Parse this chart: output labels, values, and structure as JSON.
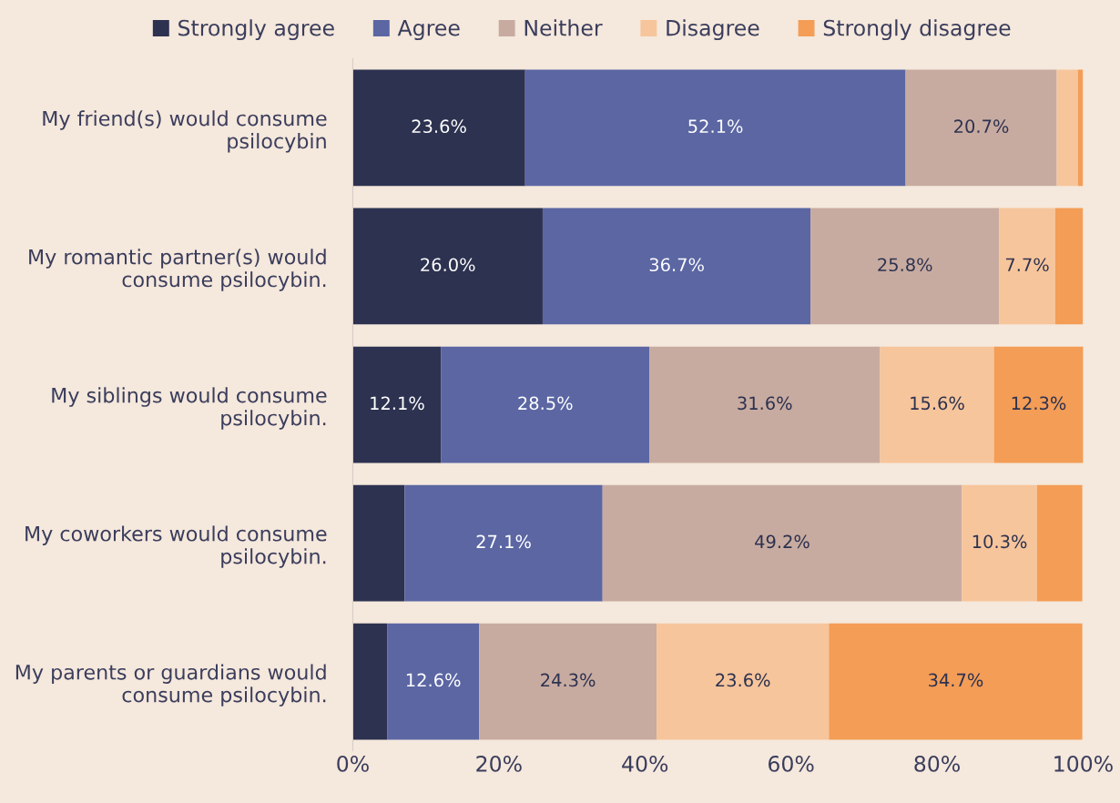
{
  "chart_data": {
    "type": "bar",
    "orientation": "horizontal",
    "stacked": true,
    "categories": [
      "My friend(s) would consume psilocybin",
      "My romantic partner(s) would consume psilocybin.",
      "My siblings would consume psilocybin.",
      "My coworkers would consume psilocybin.",
      "My parents or guardians would consume psilocybin."
    ],
    "series": [
      {
        "name": "Strongly agree",
        "color": "#2d3250",
        "values": [
          23.6,
          26.0,
          12.1,
          7.1,
          4.7
        ],
        "value_labels": [
          "23.6%",
          "26.0%",
          "12.1%",
          null,
          null
        ]
      },
      {
        "name": "Agree",
        "color": "#5b66a3",
        "values": [
          52.1,
          36.7,
          28.5,
          27.1,
          12.6
        ],
        "value_labels": [
          "52.1%",
          "36.7%",
          "28.5%",
          "27.1%",
          "12.6%"
        ]
      },
      {
        "name": "Neither",
        "color": "#c8aba0",
        "values": [
          20.7,
          25.8,
          31.6,
          49.2,
          24.3
        ],
        "value_labels": [
          "20.7%",
          "25.8%",
          "31.6%",
          "49.2%",
          "24.3%"
        ]
      },
      {
        "name": "Disagree",
        "color": "#f7c59b",
        "values": [
          2.9,
          7.7,
          15.6,
          10.3,
          23.6
        ],
        "value_labels": [
          null,
          "7.7%",
          "15.6%",
          "10.3%",
          "23.6%"
        ]
      },
      {
        "name": "Strongly disagree",
        "color": "#f49d56",
        "values": [
          0.7,
          3.8,
          12.3,
          6.2,
          34.7
        ],
        "value_labels": [
          null,
          null,
          "12.3%",
          null,
          "34.7%"
        ]
      }
    ],
    "xlim": [
      0,
      100
    ],
    "xticks": [
      {
        "value": 0,
        "label": "0%"
      },
      {
        "value": 20,
        "label": "20%"
      },
      {
        "value": 40,
        "label": "40%"
      },
      {
        "value": 60,
        "label": "60%"
      },
      {
        "value": 80,
        "label": "80%"
      },
      {
        "value": 100,
        "label": "100%"
      }
    ],
    "grid": false,
    "legend": "top"
  }
}
